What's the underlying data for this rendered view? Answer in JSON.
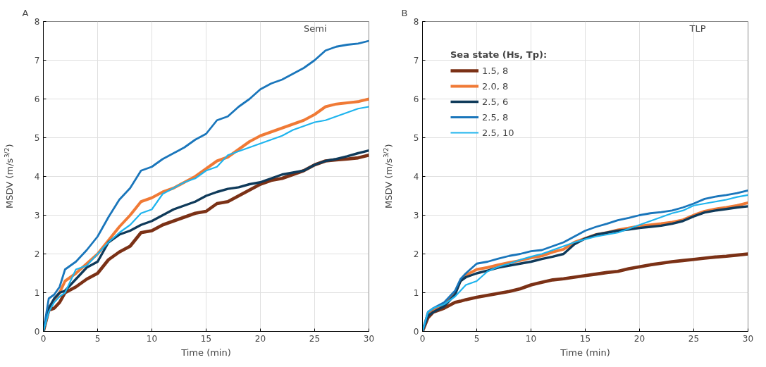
{
  "chart_data": [
    {
      "type": "line",
      "title": "A",
      "xlabel": "Time (min)",
      "ylabel": "MSDV (m/s$^{3/2}$)",
      "annotations": [
        "Semi"
      ],
      "xlim": [
        0,
        30
      ],
      "ylim": [
        0,
        8
      ],
      "xticks": [
        0,
        5,
        10,
        15,
        20,
        25,
        30
      ],
      "yticks": [
        0,
        1,
        2,
        3,
        4,
        5,
        6,
        7,
        8
      ],
      "grid": true,
      "legend": false,
      "marker": "none",
      "line_style": "solid",
      "x": [
        0,
        0.5,
        1,
        1.5,
        2,
        3,
        4,
        5,
        6,
        7,
        8,
        9,
        10,
        11,
        12,
        13,
        14,
        15,
        16,
        17,
        18,
        19,
        20,
        21,
        22,
        23,
        24,
        25,
        26,
        27,
        28,
        29,
        30
      ],
      "series": [
        {
          "color": "#7b3116",
          "values": [
            0,
            0.55,
            0.6,
            0.75,
            1.0,
            1.15,
            1.35,
            1.5,
            1.85,
            2.05,
            2.2,
            2.55,
            2.6,
            2.75,
            2.85,
            2.95,
            3.05,
            3.1,
            3.3,
            3.35,
            3.5,
            3.65,
            3.8,
            3.9,
            3.95,
            4.05,
            4.15,
            4.3,
            4.4,
            4.43,
            4.45,
            4.48,
            4.55
          ]
        },
        {
          "color": "#f07a36",
          "values": [
            0,
            0.6,
            0.8,
            1.0,
            1.3,
            1.5,
            1.75,
            2.0,
            2.35,
            2.7,
            3.0,
            3.35,
            3.45,
            3.6,
            3.7,
            3.85,
            4.0,
            4.2,
            4.4,
            4.5,
            4.7,
            4.9,
            5.05,
            5.15,
            5.25,
            5.35,
            5.45,
            5.6,
            5.8,
            5.87,
            5.9,
            5.93,
            6.0
          ]
        },
        {
          "color": "#0f3a5a",
          "values": [
            0,
            0.6,
            0.85,
            1.0,
            1.05,
            1.35,
            1.65,
            1.8,
            2.3,
            2.5,
            2.6,
            2.75,
            2.85,
            3.0,
            3.15,
            3.25,
            3.35,
            3.5,
            3.6,
            3.68,
            3.72,
            3.8,
            3.85,
            3.95,
            4.05,
            4.1,
            4.15,
            4.3,
            4.4,
            4.45,
            4.52,
            4.6,
            4.67
          ]
        },
        {
          "color": "#1a76bb",
          "values": [
            0,
            0.85,
            0.95,
            1.15,
            1.6,
            1.8,
            2.1,
            2.45,
            2.95,
            3.4,
            3.7,
            4.15,
            4.25,
            4.45,
            4.6,
            4.75,
            4.95,
            5.1,
            5.45,
            5.55,
            5.8,
            6.0,
            6.25,
            6.4,
            6.5,
            6.65,
            6.8,
            7.0,
            7.25,
            7.35,
            7.4,
            7.43,
            7.5
          ]
        },
        {
          "color": "#1eb4ee",
          "values": [
            0,
            0.5,
            0.75,
            0.9,
            1.0,
            1.6,
            1.7,
            2.0,
            2.3,
            2.55,
            2.75,
            3.05,
            3.15,
            3.55,
            3.7,
            3.85,
            3.95,
            4.15,
            4.25,
            4.55,
            4.65,
            4.75,
            4.85,
            4.95,
            5.05,
            5.2,
            5.3,
            5.4,
            5.45,
            5.55,
            5.65,
            5.75,
            5.8
          ]
        }
      ]
    },
    {
      "type": "line",
      "title": "B",
      "xlabel": "Time (min)",
      "ylabel": "MSDV (m/s$^{3/2}$)",
      "annotations": [
        "TLP"
      ],
      "legend_title": "Sea state (Hs, Tp):",
      "xlim": [
        0,
        30
      ],
      "ylim": [
        0,
        8
      ],
      "xticks": [
        0,
        5,
        10,
        15,
        20,
        25,
        30
      ],
      "yticks": [
        0,
        1,
        2,
        3,
        4,
        5,
        6,
        7,
        8
      ],
      "grid": true,
      "legend": "top left",
      "marker": "none",
      "line_style": "solid",
      "x": [
        0,
        0.5,
        1,
        2,
        3,
        3.5,
        4,
        5,
        6,
        7,
        8,
        9,
        10,
        11,
        12,
        13,
        14,
        15,
        16,
        17,
        18,
        19,
        20,
        21,
        22,
        23,
        24,
        25,
        26,
        27,
        28,
        29,
        30
      ],
      "series": [
        {
          "name": "1.5, 8",
          "color": "#7b3116",
          "values": [
            0,
            0.35,
            0.5,
            0.6,
            0.75,
            0.78,
            0.82,
            0.88,
            0.93,
            0.98,
            1.03,
            1.1,
            1.2,
            1.27,
            1.33,
            1.36,
            1.4,
            1.44,
            1.48,
            1.52,
            1.55,
            1.62,
            1.67,
            1.72,
            1.76,
            1.8,
            1.83,
            1.86,
            1.89,
            1.92,
            1.94,
            1.97,
            2.0
          ]
        },
        {
          "name": "2.0, 8",
          "color": "#f07a36",
          "values": [
            0,
            0.45,
            0.55,
            0.7,
            1.0,
            1.3,
            1.45,
            1.6,
            1.65,
            1.72,
            1.78,
            1.83,
            1.9,
            1.95,
            2.05,
            2.12,
            2.3,
            2.4,
            2.5,
            2.55,
            2.62,
            2.67,
            2.72,
            2.75,
            2.78,
            2.82,
            2.88,
            3.0,
            3.1,
            3.16,
            3.2,
            3.25,
            3.32
          ]
        },
        {
          "name": "2.5, 6",
          "color": "#0f3a5a",
          "values": [
            0,
            0.4,
            0.5,
            0.65,
            0.95,
            1.3,
            1.4,
            1.5,
            1.57,
            1.65,
            1.7,
            1.75,
            1.8,
            1.87,
            1.93,
            2.0,
            2.25,
            2.4,
            2.5,
            2.55,
            2.6,
            2.63,
            2.67,
            2.7,
            2.73,
            2.78,
            2.85,
            2.97,
            3.07,
            3.12,
            3.16,
            3.2,
            3.23
          ]
        },
        {
          "name": "2.5, 8",
          "color": "#1a76bb",
          "values": [
            0,
            0.5,
            0.6,
            0.75,
            1.05,
            1.35,
            1.5,
            1.75,
            1.8,
            1.88,
            1.95,
            2.0,
            2.07,
            2.1,
            2.2,
            2.3,
            2.45,
            2.6,
            2.7,
            2.78,
            2.87,
            2.93,
            3.0,
            3.05,
            3.08,
            3.12,
            3.2,
            3.3,
            3.42,
            3.48,
            3.52,
            3.57,
            3.64
          ]
        },
        {
          "name": "2.5, 10",
          "color": "#1eb4ee",
          "values": [
            0,
            0.5,
            0.6,
            0.7,
            0.9,
            1.05,
            1.2,
            1.3,
            1.55,
            1.67,
            1.75,
            1.85,
            1.93,
            2.0,
            2.1,
            2.2,
            2.3,
            2.38,
            2.45,
            2.5,
            2.55,
            2.65,
            2.75,
            2.85,
            2.95,
            3.05,
            3.12,
            3.25,
            3.3,
            3.35,
            3.4,
            3.47,
            3.52
          ]
        }
      ]
    }
  ]
}
